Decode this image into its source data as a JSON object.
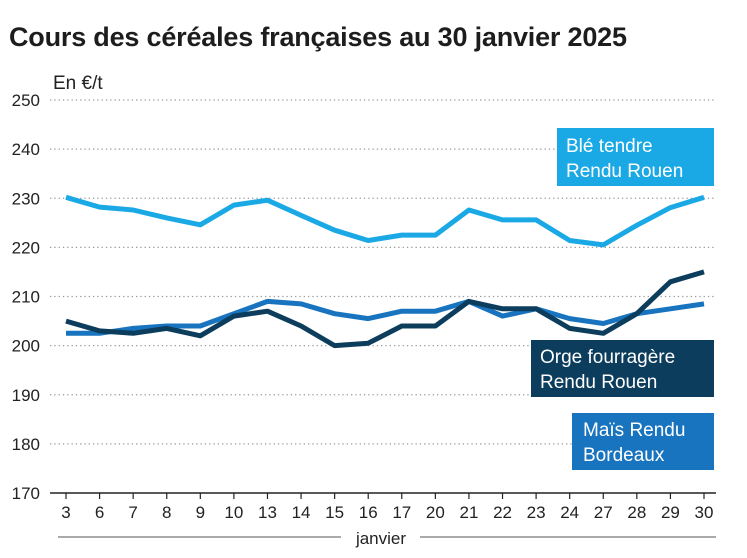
{
  "chart_data": {
    "type": "line",
    "title": "Cours des céréales françaises au 30 janvier 2025",
    "ylabel": "En €/t",
    "xlabel": "janvier",
    "ylim": [
      170,
      250
    ],
    "yticks": [
      170,
      180,
      190,
      200,
      210,
      220,
      230,
      240,
      250
    ],
    "grid": true,
    "categories": [
      "3",
      "6",
      "7",
      "8",
      "9",
      "10",
      "13",
      "14",
      "15",
      "16",
      "17",
      "20",
      "21",
      "22",
      "23",
      "24",
      "27",
      "28",
      "29",
      "30"
    ],
    "series": [
      {
        "name": "Blé tendre Rendu Rouen",
        "label_lines": [
          "Blé tendre",
          "Rendu Rouen"
        ],
        "color": "#1ba9e6",
        "values": [
          230.2,
          228.2,
          227.6,
          226.0,
          224.6,
          228.6,
          229.6,
          226.5,
          223.5,
          221.4,
          222.5,
          222.5,
          227.6,
          225.6,
          225.6,
          221.4,
          220.5,
          224.5,
          228.1,
          230.2
        ]
      },
      {
        "name": "Orge fourragère Rendu Rouen",
        "label_lines": [
          "Orge fourragère",
          "Rendu Rouen"
        ],
        "color": "#0c3d5c",
        "values": [
          205.0,
          203.0,
          202.5,
          203.5,
          202.0,
          206.0,
          207.0,
          204.0,
          200.0,
          200.5,
          204.0,
          204.0,
          209.0,
          207.5,
          207.5,
          203.5,
          202.5,
          206.5,
          213.0,
          215.0
        ]
      },
      {
        "name": "Maïs Rendu Bordeaux",
        "label_lines": [
          "Maïs Rendu",
          "Bordeaux"
        ],
        "color": "#1874be",
        "values": [
          202.5,
          202.5,
          203.5,
          204.0,
          204.0,
          206.5,
          209.0,
          208.5,
          206.5,
          205.5,
          207.0,
          207.0,
          209.0,
          206.0,
          207.5,
          205.5,
          204.5,
          206.5,
          207.5,
          208.5
        ]
      }
    ]
  }
}
